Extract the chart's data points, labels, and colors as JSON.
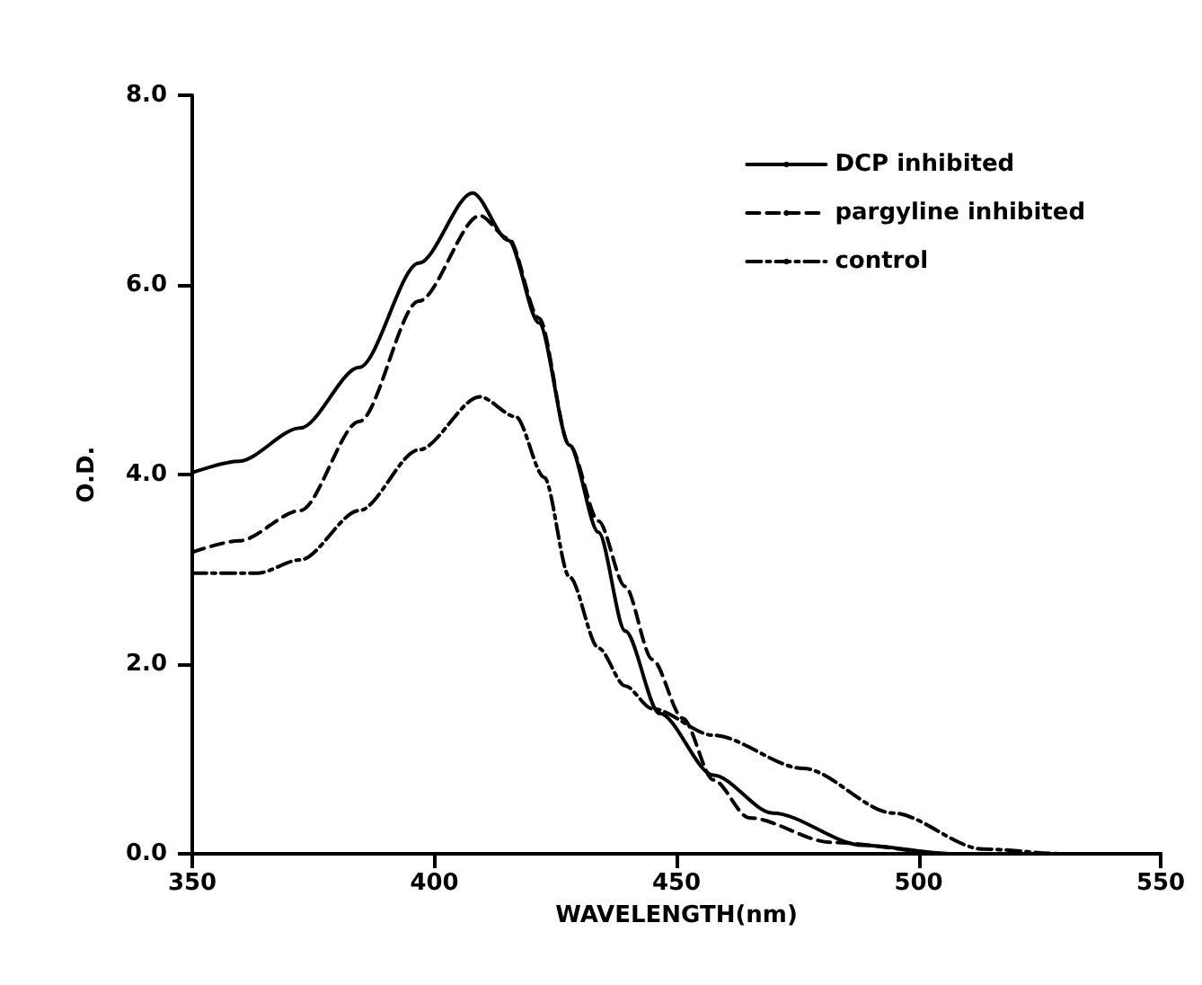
{
  "chart_data": {
    "type": "line",
    "xlabel": "WAVELENGTH(nm)",
    "ylabel": "O.D.",
    "xlim": [
      350,
      550
    ],
    "xticks": [
      350,
      400,
      450,
      500,
      550
    ],
    "ylim": [
      0,
      8
    ],
    "yticks": [
      {
        "value": 0,
        "label": "0.0"
      },
      {
        "value": 2,
        "label": "2.0"
      },
      {
        "value": 4,
        "label": "4.0"
      },
      {
        "value": 6,
        "label": "6.0"
      },
      {
        "value": 8,
        "label": "8.0"
      }
    ],
    "legend": "top right",
    "grid": false,
    "series": [
      {
        "name": "DCP inhibited",
        "color": "#000000",
        "line_style": "solid",
        "x": [
          350,
          359.6,
          372.3,
          384.5,
          396.8,
          407.9,
          415.3,
          421.6,
          427.9,
          433.9,
          439.4,
          446.5,
          457.6,
          469.9,
          488.4,
          507,
          530,
          550
        ],
        "values": [
          4.02,
          4.14,
          4.49,
          5.13,
          6.23,
          6.97,
          6.47,
          5.6,
          4.31,
          3.39,
          2.35,
          1.48,
          0.83,
          0.43,
          0.09,
          0,
          0,
          0
        ]
      },
      {
        "name": "pargyline inhibited",
        "color": "#000000",
        "line_style": "dashed",
        "x": [
          350,
          359.6,
          372.3,
          384.5,
          396.8,
          409.4,
          415.3,
          421.6,
          427.9,
          433.9,
          439.4,
          445,
          451.3,
          457.6,
          465,
          482,
          507,
          530,
          550
        ],
        "values": [
          3.18,
          3.3,
          3.62,
          4.56,
          5.83,
          6.73,
          6.49,
          5.65,
          4.31,
          3.51,
          2.82,
          2.05,
          1.43,
          0.78,
          0.38,
          0.12,
          0,
          0,
          0
        ]
      },
      {
        "name": "control",
        "color": "#000000",
        "line_style": "dashdot",
        "x": [
          350,
          363.4,
          372.3,
          384.5,
          396.8,
          409.4,
          416.8,
          422.7,
          427.9,
          433.9,
          439.4,
          445,
          457.6,
          476.2,
          494.7,
          513.3,
          530,
          550
        ],
        "values": [
          2.96,
          2.96,
          3.1,
          3.62,
          4.26,
          4.82,
          4.61,
          3.97,
          2.92,
          2.17,
          1.77,
          1.53,
          1.25,
          0.9,
          0.43,
          0.05,
          0,
          0
        ]
      }
    ]
  }
}
